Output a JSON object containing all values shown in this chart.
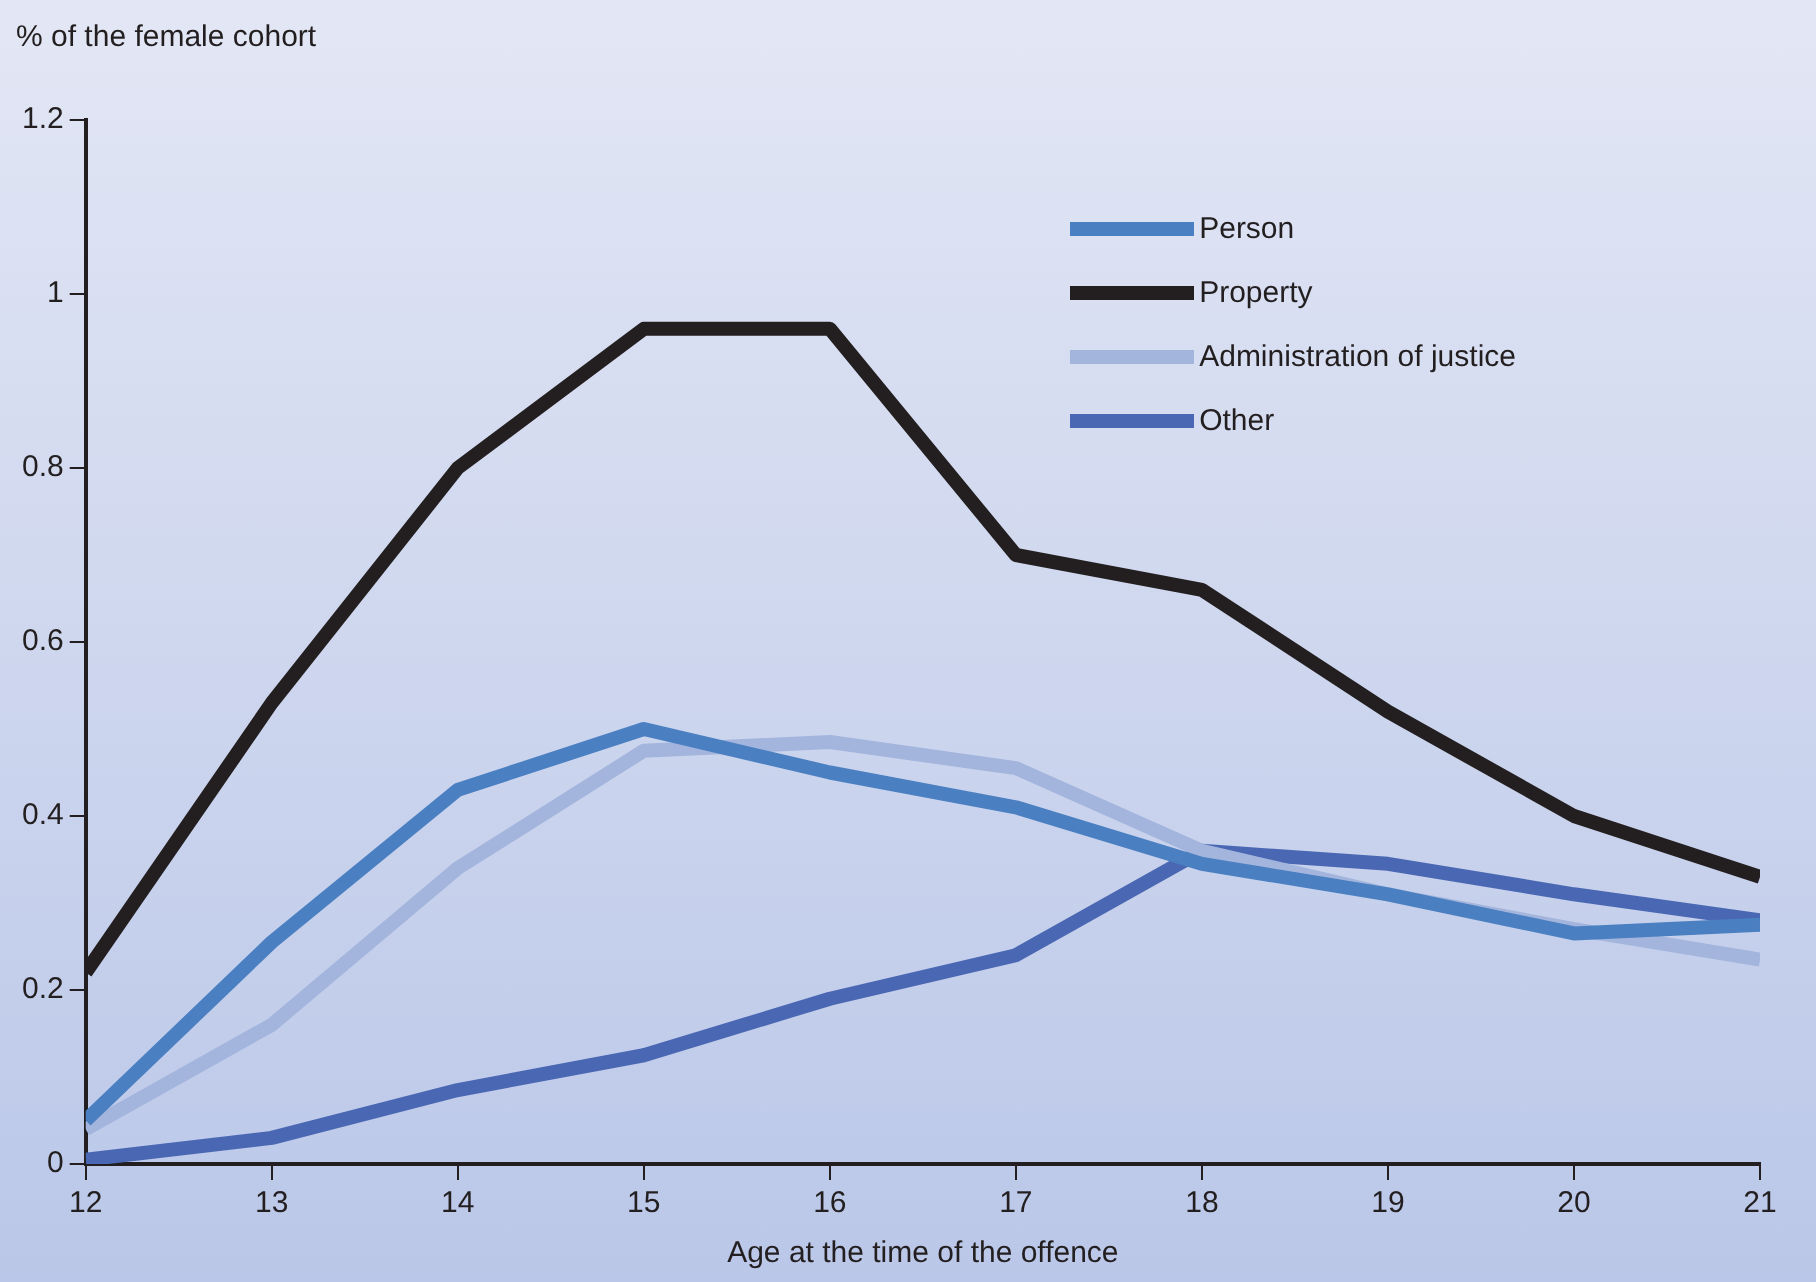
{
  "chart_data": {
    "type": "line",
    "ylabel": "% of the female cohort",
    "xlabel": "Age at the time of the offence",
    "x": [
      12,
      13,
      14,
      15,
      16,
      17,
      18,
      19,
      20,
      21
    ],
    "series": [
      {
        "name": "Person",
        "color": "#4a7fc1",
        "values": [
          0.05,
          0.255,
          0.43,
          0.5,
          0.45,
          0.41,
          0.345,
          0.31,
          0.265,
          0.275
        ]
      },
      {
        "name": "Property",
        "color": "#231f20",
        "values": [
          0.22,
          0.53,
          0.8,
          0.96,
          0.96,
          0.7,
          0.66,
          0.52,
          0.4,
          0.33
        ]
      },
      {
        "name": "Administration of justice",
        "color": "#a3b5dd",
        "values": [
          0.04,
          0.16,
          0.34,
          0.475,
          0.485,
          0.455,
          0.36,
          0.31,
          0.27,
          0.235
        ]
      },
      {
        "name": "Other",
        "color": "#4a67b3",
        "values": [
          0.005,
          0.03,
          0.085,
          0.125,
          0.19,
          0.24,
          0.36,
          0.345,
          0.31,
          0.28
        ]
      }
    ],
    "xlim": [
      12,
      21
    ],
    "xticks": [
      12,
      13,
      14,
      15,
      16,
      17,
      18,
      19,
      20,
      21
    ],
    "ylim": [
      0,
      1.2
    ],
    "yticks": [
      0,
      0.2,
      0.4,
      0.6,
      0.8,
      1,
      1.2
    ],
    "grid": false,
    "legend": "top right",
    "marker": "none",
    "line_style": "solid"
  }
}
